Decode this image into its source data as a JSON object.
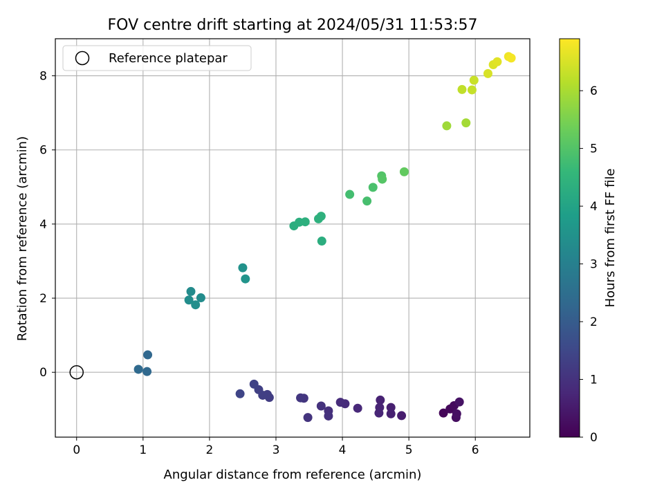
{
  "chart_data": {
    "type": "scatter",
    "title": "FOV centre drift starting at 2024/05/31 11:53:57",
    "xlabel": "Angular distance from reference (arcmin)",
    "ylabel": "Rotation from reference (arcmin)",
    "colorbar_label": "Hours from first FF file",
    "xlim": [
      -0.32,
      6.82
    ],
    "ylim": [
      -1.75,
      9.0
    ],
    "xticks": [
      0,
      1,
      2,
      3,
      4,
      5,
      6
    ],
    "yticks": [
      0,
      2,
      4,
      6,
      8
    ],
    "colorbar_range": [
      0,
      6.9
    ],
    "colorbar_ticks": [
      0,
      1,
      2,
      3,
      4,
      5,
      6
    ],
    "colormap": "viridis",
    "grid": true,
    "legend": {
      "placement": "top-left",
      "label": "Reference platepar"
    },
    "reference_point": {
      "x": 0,
      "y": 0
    },
    "points": [
      {
        "x": 5.52,
        "y": -1.1,
        "t": 0.1
      },
      {
        "x": 5.62,
        "y": -0.99,
        "t": 0.15
      },
      {
        "x": 5.68,
        "y": -0.9,
        "t": 0.2
      },
      {
        "x": 5.71,
        "y": -1.22,
        "t": 0.25
      },
      {
        "x": 5.72,
        "y": -1.12,
        "t": 0.3
      },
      {
        "x": 5.76,
        "y": -0.8,
        "t": 0.35
      },
      {
        "x": 4.89,
        "y": -1.17,
        "t": 0.55
      },
      {
        "x": 4.73,
        "y": -0.95,
        "t": 0.6
      },
      {
        "x": 4.73,
        "y": -1.12,
        "t": 0.62
      },
      {
        "x": 4.57,
        "y": -0.75,
        "t": 0.65
      },
      {
        "x": 4.56,
        "y": -0.95,
        "t": 0.7
      },
      {
        "x": 4.55,
        "y": -1.1,
        "t": 0.72
      },
      {
        "x": 4.23,
        "y": -0.97,
        "t": 0.8
      },
      {
        "x": 4.04,
        "y": -0.85,
        "t": 0.85
      },
      {
        "x": 3.97,
        "y": -0.81,
        "t": 0.88
      },
      {
        "x": 3.79,
        "y": -1.04,
        "t": 0.95
      },
      {
        "x": 3.79,
        "y": -1.18,
        "t": 0.97
      },
      {
        "x": 3.68,
        "y": -0.91,
        "t": 1.0
      },
      {
        "x": 3.48,
        "y": -1.22,
        "t": 1.05
      },
      {
        "x": 3.42,
        "y": -0.7,
        "t": 1.1
      },
      {
        "x": 3.37,
        "y": -0.69,
        "t": 1.12
      },
      {
        "x": 2.9,
        "y": -0.68,
        "t": 1.25
      },
      {
        "x": 2.87,
        "y": -0.6,
        "t": 1.28
      },
      {
        "x": 2.8,
        "y": -0.62,
        "t": 1.3
      },
      {
        "x": 2.74,
        "y": -0.47,
        "t": 1.33
      },
      {
        "x": 2.67,
        "y": -0.32,
        "t": 1.36
      },
      {
        "x": 2.46,
        "y": -0.58,
        "t": 1.45
      },
      {
        "x": 1.07,
        "y": 0.47,
        "t": 2.3
      },
      {
        "x": 1.06,
        "y": 0.02,
        "t": 2.32
      },
      {
        "x": 0.93,
        "y": 0.08,
        "t": 2.35
      },
      {
        "x": 1.72,
        "y": 2.18,
        "t": 3.3
      },
      {
        "x": 1.87,
        "y": 2.01,
        "t": 3.35
      },
      {
        "x": 1.69,
        "y": 1.95,
        "t": 3.38
      },
      {
        "x": 1.79,
        "y": 1.82,
        "t": 3.4
      },
      {
        "x": 2.5,
        "y": 2.82,
        "t": 3.5
      },
      {
        "x": 2.54,
        "y": 2.52,
        "t": 3.55
      },
      {
        "x": 3.69,
        "y": 3.54,
        "t": 4.3
      },
      {
        "x": 3.27,
        "y": 3.95,
        "t": 4.3
      },
      {
        "x": 3.35,
        "y": 4.05,
        "t": 4.32
      },
      {
        "x": 3.44,
        "y": 4.06,
        "t": 4.35
      },
      {
        "x": 3.64,
        "y": 4.14,
        "t": 4.38
      },
      {
        "x": 3.68,
        "y": 4.21,
        "t": 4.4
      },
      {
        "x": 4.11,
        "y": 4.8,
        "t": 4.8
      },
      {
        "x": 4.37,
        "y": 4.62,
        "t": 4.85
      },
      {
        "x": 4.46,
        "y": 4.99,
        "t": 4.9
      },
      {
        "x": 4.59,
        "y": 5.3,
        "t": 5.0
      },
      {
        "x": 4.6,
        "y": 5.21,
        "t": 5.05
      },
      {
        "x": 4.93,
        "y": 5.41,
        "t": 5.2
      },
      {
        "x": 5.57,
        "y": 6.65,
        "t": 5.9
      },
      {
        "x": 5.86,
        "y": 6.73,
        "t": 5.95
      },
      {
        "x": 5.8,
        "y": 7.63,
        "t": 6.25
      },
      {
        "x": 5.95,
        "y": 7.62,
        "t": 6.3
      },
      {
        "x": 5.98,
        "y": 7.88,
        "t": 6.35
      },
      {
        "x": 6.19,
        "y": 8.06,
        "t": 6.5
      },
      {
        "x": 6.27,
        "y": 8.3,
        "t": 6.55
      },
      {
        "x": 6.33,
        "y": 8.38,
        "t": 6.6
      },
      {
        "x": 6.5,
        "y": 8.52,
        "t": 6.75
      },
      {
        "x": 6.54,
        "y": 8.48,
        "t": 6.8
      }
    ]
  }
}
